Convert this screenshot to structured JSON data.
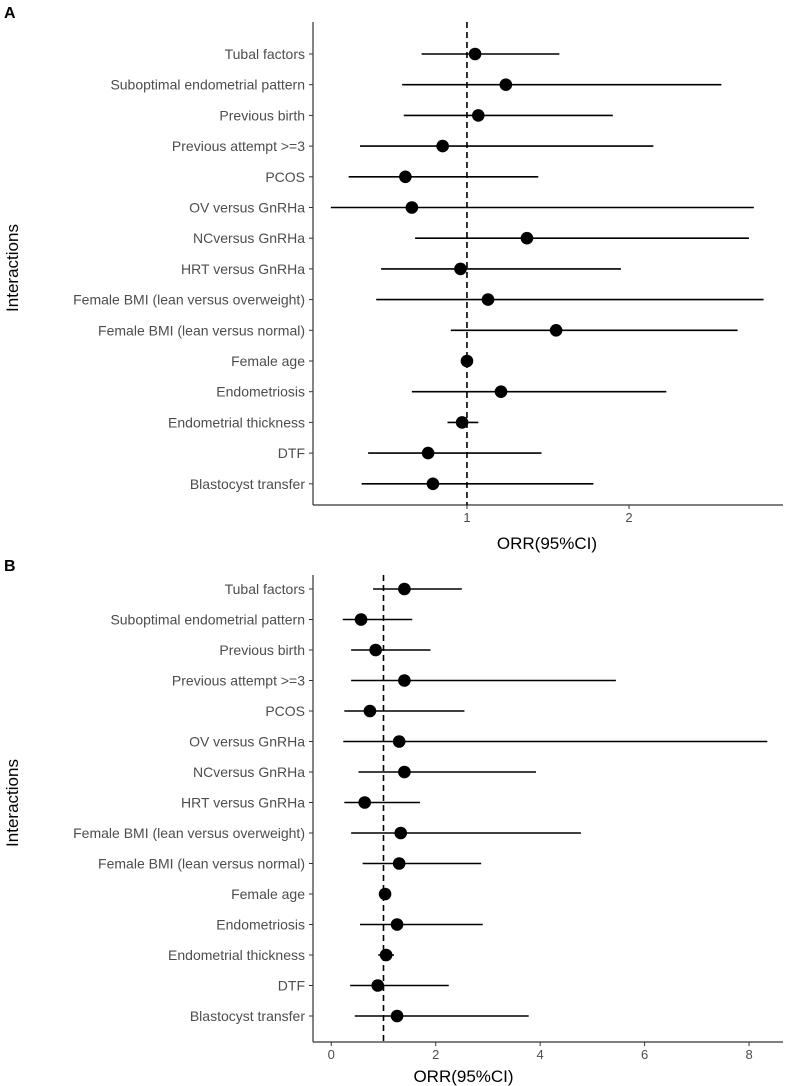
{
  "chart_data": [
    {
      "type": "forest",
      "panel_label": "A",
      "xlabel": "ORR(95%CI)",
      "ylabel": "Interactions",
      "xlim": [
        0.05,
        2.95
      ],
      "xticks": [
        1,
        2
      ],
      "tick_labels": [
        "1",
        "2"
      ],
      "reference_line": 1,
      "colors": {
        "point": "#000000",
        "line": "#000000",
        "axis": "#333333"
      },
      "rows": [
        {
          "label": "Tubal factors",
          "orr": 1.05,
          "lo": 0.72,
          "hi": 1.57
        },
        {
          "label": "Suboptimal endometrial pattern",
          "orr": 1.24,
          "lo": 0.6,
          "hi": 2.57
        },
        {
          "label": "Previous birth",
          "orr": 1.07,
          "lo": 0.61,
          "hi": 1.9
        },
        {
          "label": "Previous attempt >=3",
          "orr": 0.85,
          "lo": 0.34,
          "hi": 2.15
        },
        {
          "label": "PCOS",
          "orr": 0.62,
          "lo": 0.27,
          "hi": 1.44
        },
        {
          "label": "OV versus GnRHa",
          "orr": 0.66,
          "lo": 0.16,
          "hi": 2.77
        },
        {
          "label": "NCversus GnRHa",
          "orr": 1.37,
          "lo": 0.68,
          "hi": 2.74
        },
        {
          "label": "HRT versus GnRHa",
          "orr": 0.96,
          "lo": 0.47,
          "hi": 1.95
        },
        {
          "label": "Female BMI (lean versus overweight)",
          "orr": 1.13,
          "lo": 0.44,
          "hi": 2.83
        },
        {
          "label": "Female BMI (lean versus normal)",
          "orr": 1.55,
          "lo": 0.9,
          "hi": 2.67
        },
        {
          "label": "Female age",
          "orr": 1.0,
          "lo": 0.98,
          "hi": 1.01
        },
        {
          "label": "Endometriosis",
          "orr": 1.21,
          "lo": 0.66,
          "hi": 2.23
        },
        {
          "label": "Endometrial thickness",
          "orr": 0.97,
          "lo": 0.88,
          "hi": 1.07
        },
        {
          "label": "DTF",
          "orr": 0.76,
          "lo": 0.39,
          "hi": 1.46
        },
        {
          "label": "Blastocyst transfer",
          "orr": 0.79,
          "lo": 0.35,
          "hi": 1.78
        }
      ]
    },
    {
      "type": "forest",
      "panel_label": "B",
      "xlabel": "ORR(95%CI)",
      "ylabel": "Interactions",
      "xlim": [
        -0.35,
        8.65
      ],
      "xticks": [
        0,
        2,
        4,
        6,
        8
      ],
      "tick_labels": [
        "0",
        "2",
        "4",
        "6",
        "8"
      ],
      "reference_line": 1,
      "colors": {
        "point": "#000000",
        "line": "#000000",
        "axis": "#333333"
      },
      "rows": [
        {
          "label": "Tubal factors",
          "orr": 1.4,
          "lo": 0.8,
          "hi": 2.5
        },
        {
          "label": "Suboptimal endometrial pattern",
          "orr": 0.57,
          "lo": 0.22,
          "hi": 1.55
        },
        {
          "label": "Previous birth",
          "orr": 0.85,
          "lo": 0.38,
          "hi": 1.9
        },
        {
          "label": "Previous attempt >=3",
          "orr": 1.4,
          "lo": 0.38,
          "hi": 5.45
        },
        {
          "label": "PCOS",
          "orr": 0.74,
          "lo": 0.25,
          "hi": 2.55
        },
        {
          "label": "OV versus GnRHa",
          "orr": 1.3,
          "lo": 0.23,
          "hi": 8.35
        },
        {
          "label": "NCversus GnRHa",
          "orr": 1.4,
          "lo": 0.52,
          "hi": 3.92
        },
        {
          "label": "HRT versus GnRHa",
          "orr": 0.64,
          "lo": 0.25,
          "hi": 1.7
        },
        {
          "label": "Female BMI (lean versus overweight)",
          "orr": 1.33,
          "lo": 0.38,
          "hi": 4.78
        },
        {
          "label": "Female BMI (lean versus normal)",
          "orr": 1.3,
          "lo": 0.6,
          "hi": 2.87
        },
        {
          "label": "Female age",
          "orr": 1.03,
          "lo": 0.97,
          "hi": 1.08
        },
        {
          "label": "Endometriosis",
          "orr": 1.26,
          "lo": 0.55,
          "hi": 2.9
        },
        {
          "label": "Endometrial thickness",
          "orr": 1.05,
          "lo": 0.9,
          "hi": 1.2
        },
        {
          "label": "DTF",
          "orr": 0.89,
          "lo": 0.36,
          "hi": 2.25
        },
        {
          "label": "Blastocyst transfer",
          "orr": 1.26,
          "lo": 0.45,
          "hi": 3.78
        }
      ]
    }
  ]
}
